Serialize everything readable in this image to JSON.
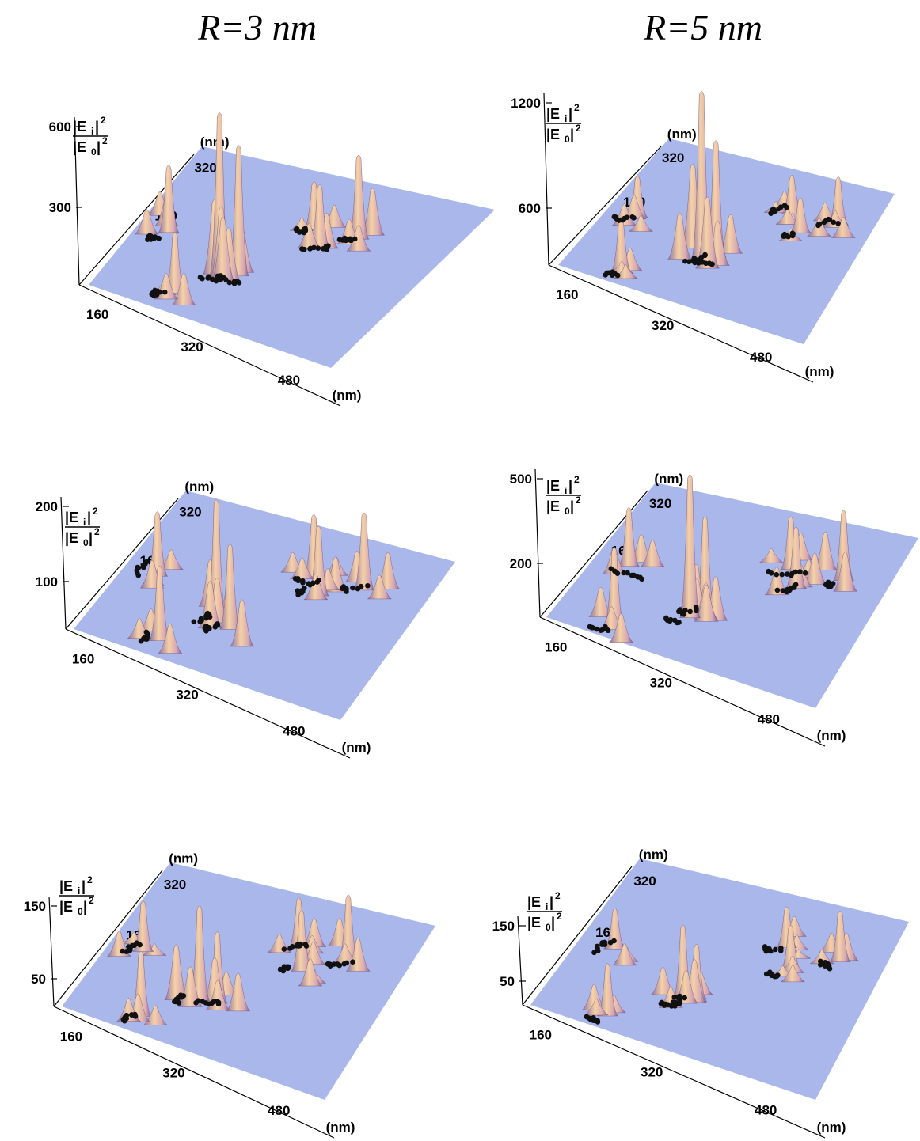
{
  "column_titles": [
    "R=3 nm",
    "R=5 nm"
  ],
  "axis_unit": "(nm)",
  "z_label": {
    "numerator": "|E",
    "num_sub": "i",
    "denominator": "|E",
    "den_sub": "0",
    "sup": "2"
  },
  "colors": {
    "plane": "#a9b7ea",
    "peak_light": "#f6d2a6",
    "peak_mid": "#d8aab3",
    "peak_dark": "#8f6f9f",
    "particle": "#111111"
  },
  "chart_data": [
    {
      "type": "surface3d",
      "column": "R=3 nm",
      "row": 1,
      "z_ticks": [
        "600",
        "300"
      ],
      "zlim": [
        0,
        600
      ],
      "x_ticks": [
        "160",
        "320",
        "480"
      ],
      "y_ticks": [
        "160",
        "320"
      ],
      "xlabel": "(nm)",
      "ylabel": "(nm)",
      "peaks": [
        [
          0.4,
          0.3,
          1.0
        ],
        [
          0.46,
          0.34,
          0.8
        ],
        [
          0.3,
          0.12,
          0.38
        ],
        [
          0.12,
          0.45,
          0.42
        ],
        [
          0.65,
          0.65,
          0.4
        ],
        [
          0.75,
          0.78,
          0.52
        ],
        [
          0.58,
          0.75,
          0.3
        ]
      ]
    },
    {
      "type": "surface3d",
      "column": "R=5 nm",
      "row": 1,
      "z_ticks": [
        "1200",
        "600"
      ],
      "zlim": [
        0,
        1200
      ],
      "x_ticks": [
        "160",
        "320",
        "480"
      ],
      "y_ticks": [
        "160",
        "320"
      ],
      "xlabel": "(nm)",
      "ylabel": "(nm)",
      "peaks": [
        [
          0.44,
          0.32,
          1.0
        ],
        [
          0.48,
          0.36,
          0.7
        ],
        [
          0.22,
          0.08,
          0.34
        ],
        [
          0.12,
          0.45,
          0.26
        ],
        [
          0.68,
          0.68,
          0.22
        ],
        [
          0.78,
          0.8,
          0.3
        ],
        [
          0.6,
          0.78,
          0.24
        ]
      ]
    },
    {
      "type": "surface3d",
      "column": "R=3 nm",
      "row": 2,
      "z_ticks": [
        "200",
        "100"
      ],
      "zlim": [
        0,
        250
      ],
      "x_ticks": [
        "160",
        "320",
        "480"
      ],
      "y_ticks": [
        "160",
        "320"
      ],
      "xlabel": "(nm)",
      "ylabel": "(nm)",
      "peaks": [
        [
          0.4,
          0.32,
          0.96
        ],
        [
          0.46,
          0.3,
          0.68
        ],
        [
          0.28,
          0.1,
          0.6
        ],
        [
          0.12,
          0.46,
          0.52
        ],
        [
          0.64,
          0.66,
          0.56
        ],
        [
          0.76,
          0.78,
          0.62
        ],
        [
          0.58,
          0.76,
          0.5
        ]
      ]
    },
    {
      "type": "surface3d",
      "column": "R=5 nm",
      "row": 2,
      "z_ticks": [
        "500",
        "200"
      ],
      "zlim": [
        0,
        600
      ],
      "x_ticks": [
        "160",
        "320",
        "480"
      ],
      "y_ticks": [
        "160",
        "320"
      ],
      "xlabel": "(nm)",
      "ylabel": "(nm)",
      "peaks": [
        [
          0.42,
          0.28,
          1.0
        ],
        [
          0.46,
          0.32,
          0.7
        ],
        [
          0.22,
          0.08,
          0.56
        ],
        [
          0.12,
          0.46,
          0.42
        ],
        [
          0.66,
          0.66,
          0.44
        ],
        [
          0.78,
          0.8,
          0.5
        ],
        [
          0.6,
          0.76,
          0.38
        ]
      ]
    },
    {
      "type": "surface3d",
      "column": "R=3 nm",
      "row": 3,
      "z_ticks": [
        "150",
        "50"
      ],
      "zlim": [
        0,
        180
      ],
      "x_ticks": [
        "160",
        "320",
        "480"
      ],
      "y_ticks": [
        "160",
        "320"
      ],
      "xlabel": "(nm)",
      "ylabel": "(nm)",
      "peaks": [
        [
          0.4,
          0.3,
          0.92
        ],
        [
          0.46,
          0.32,
          0.7
        ],
        [
          0.26,
          0.1,
          0.64
        ],
        [
          0.12,
          0.46,
          0.5
        ],
        [
          0.64,
          0.66,
          0.6
        ],
        [
          0.76,
          0.8,
          0.66
        ],
        [
          0.58,
          0.78,
          0.5
        ]
      ]
    },
    {
      "type": "surface3d",
      "column": "R=5 nm",
      "row": 3,
      "z_ticks": [
        "150",
        "50"
      ],
      "zlim": [
        0,
        180
      ],
      "x_ticks": [
        "160",
        "320",
        "480"
      ],
      "y_ticks": [
        "160",
        "320"
      ],
      "xlabel": "(nm)",
      "ylabel": "(nm)",
      "peaks": [
        [
          0.42,
          0.3,
          0.94
        ],
        [
          0.46,
          0.32,
          0.72
        ],
        [
          0.24,
          0.08,
          0.66
        ],
        [
          0.12,
          0.46,
          0.52
        ],
        [
          0.66,
          0.66,
          0.58
        ],
        [
          0.78,
          0.8,
          0.64
        ],
        [
          0.6,
          0.78,
          0.52
        ]
      ]
    }
  ]
}
